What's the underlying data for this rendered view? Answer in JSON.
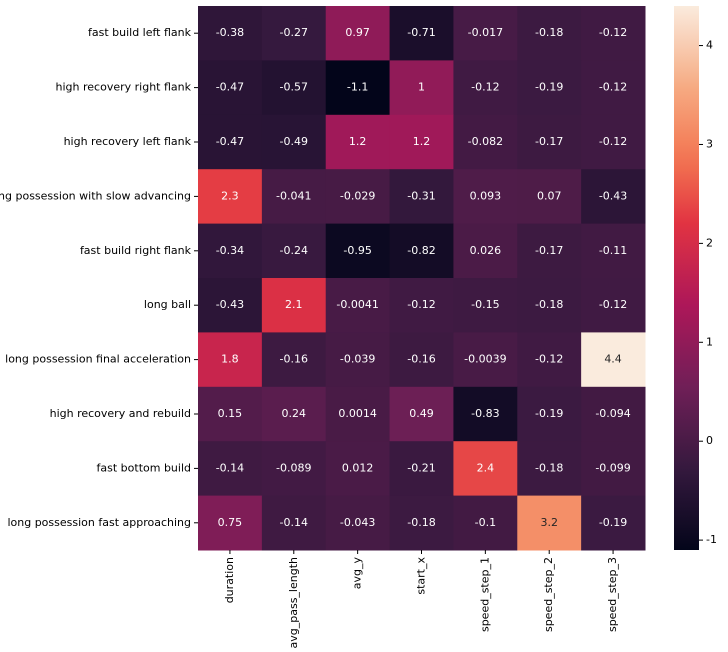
{
  "chart_data": {
    "type": "heatmap",
    "categories": [
      "duration",
      "avg_pass_length",
      "avg_y",
      "start_x",
      "speed_step_1",
      "speed_step_2",
      "speed_step_3"
    ],
    "rows": [
      "fast build left flank",
      "high recovery right flank",
      "high recovery left flank",
      "long possession with slow advancing",
      "fast build right flank",
      "long ball",
      "long possession final acceleration",
      "high recovery and rebuild",
      "fast bottom build",
      "long possession fast approaching"
    ],
    "values": [
      [
        -0.38,
        -0.27,
        0.97,
        -0.71,
        -0.017,
        -0.18,
        -0.12
      ],
      [
        -0.47,
        -0.57,
        -1.1,
        1,
        -0.12,
        -0.19,
        -0.12
      ],
      [
        -0.47,
        -0.49,
        1.2,
        1.2,
        -0.082,
        -0.17,
        -0.12
      ],
      [
        2.3,
        -0.041,
        -0.029,
        -0.31,
        0.093,
        0.07,
        -0.43
      ],
      [
        -0.34,
        -0.24,
        -0.95,
        -0.82,
        0.026,
        -0.17,
        -0.11
      ],
      [
        -0.43,
        2.1,
        -0.0041,
        -0.12,
        -0.15,
        -0.18,
        -0.12
      ],
      [
        1.8,
        -0.16,
        -0.039,
        -0.16,
        -0.0039,
        -0.12,
        4.4
      ],
      [
        0.15,
        0.24,
        0.0014,
        0.49,
        -0.83,
        -0.19,
        -0.094
      ],
      [
        -0.14,
        -0.089,
        0.012,
        -0.21,
        2.4,
        -0.18,
        -0.099
      ],
      [
        0.75,
        -0.14,
        -0.043,
        -0.18,
        -0.1,
        3.2,
        -0.19
      ]
    ],
    "colormap": "rocket",
    "zlim": [
      -1.1,
      4.4
    ],
    "zticks": [
      -1,
      0,
      1,
      2,
      3,
      4
    ]
  }
}
